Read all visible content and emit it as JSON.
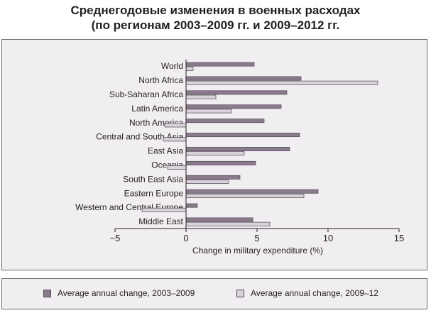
{
  "title": {
    "line1": "Среднегодовые изменения в военных расходах",
    "line2": "(по регионам 2003–2009 гг. и 2009–2012 гг."
  },
  "chart_data": {
    "type": "bar",
    "orientation": "horizontal",
    "title": "Среднегодовые изменения в военных расходах (по регионам 2003–2009 гг. и 2009–2012 гг.",
    "xlabel": "Change in military expenditure (%)",
    "ylabel": "",
    "xlim": [
      -5,
      15
    ],
    "xticks": [
      -5,
      0,
      5,
      10,
      15
    ],
    "xtick_labels": [
      "−5",
      "0",
      "5",
      "10",
      "15"
    ],
    "grid": false,
    "legend_position": "bottom",
    "categories": [
      "World",
      "North Africa",
      "Sub-Saharan Africa",
      "Latin America",
      "North America",
      "Central and South Asia",
      "East Asia",
      "Oceania",
      "South East Asia",
      "Eastern Europe",
      "Western and Central Europe",
      "Middle East"
    ],
    "series": [
      {
        "name": "Average annual change, 2003–2009",
        "color": "#8a7b8c",
        "values": [
          4.8,
          8.1,
          7.1,
          6.7,
          5.5,
          8.0,
          7.3,
          4.9,
          3.8,
          9.3,
          0.8,
          4.7
        ]
      },
      {
        "name": "Average annual change, 2009–12",
        "color": "#d9d2db",
        "values": [
          0.5,
          13.5,
          2.1,
          3.2,
          -1.5,
          -1.6,
          4.1,
          -1.3,
          3.0,
          8.3,
          -3.1,
          5.9
        ]
      }
    ]
  }
}
